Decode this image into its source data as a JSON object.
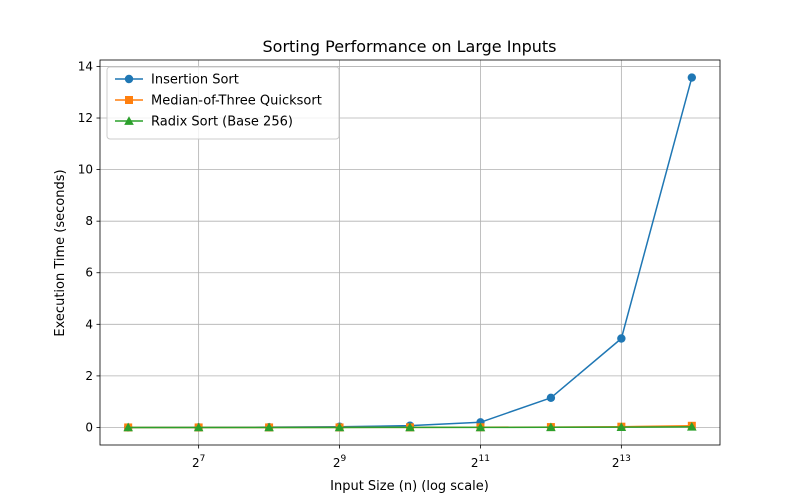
{
  "chart_data": {
    "type": "line",
    "title": "Sorting Performance on Large Inputs",
    "xlabel": "Input Size (n) (log scale)",
    "ylabel": "Execution Time (seconds)",
    "xscale": "log2",
    "x": [
      64,
      128,
      256,
      512,
      1024,
      2048,
      4096,
      8192,
      16384
    ],
    "x_ticks": [
      128,
      512,
      2048,
      8192
    ],
    "x_tick_labels": [
      {
        "base": "2",
        "exp": "7"
      },
      {
        "base": "2",
        "exp": "9"
      },
      {
        "base": "2",
        "exp": "11"
      },
      {
        "base": "2",
        "exp": "13"
      }
    ],
    "ylim": [
      -0.68,
      14.25
    ],
    "y_ticks": [
      0,
      2,
      4,
      6,
      8,
      10,
      12,
      14
    ],
    "y_tick_labels": [
      "0",
      "2",
      "4",
      "6",
      "8",
      "10",
      "12",
      "14"
    ],
    "grid": true,
    "legend_position": "top-left",
    "series": [
      {
        "name": "Insertion Sort",
        "color": "#1f77b4",
        "marker": "circle",
        "values": [
          0.001,
          0.003,
          0.011,
          0.03,
          0.07,
          0.2,
          1.15,
          3.45,
          13.57
        ]
      },
      {
        "name": "Median-of-Three Quicksort",
        "color": "#ff7f0e",
        "marker": "square",
        "values": [
          0.0002,
          0.0004,
          0.001,
          0.002,
          0.004,
          0.008,
          0.015,
          0.03,
          0.065
        ]
      },
      {
        "name": "Radix Sort (Base 256)",
        "color": "#2ca02c",
        "marker": "triangle",
        "values": [
          0.0001,
          0.0002,
          0.0004,
          0.0008,
          0.0015,
          0.003,
          0.006,
          0.012,
          0.025
        ]
      }
    ]
  }
}
